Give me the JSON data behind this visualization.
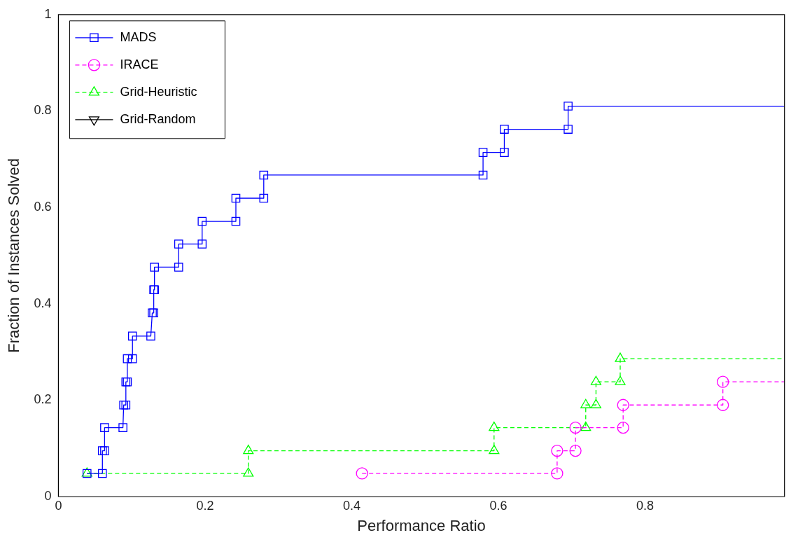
{
  "chart_data": {
    "type": "line",
    "xlabel": "Performance Ratio",
    "ylabel": "Fraction of Instances Solved",
    "xlim": [
      0,
      0.99
    ],
    "xticks": [
      0,
      0.2,
      0.4,
      0.6,
      0.8
    ],
    "ylim": [
      0,
      1
    ],
    "yticks": [
      0,
      0.2,
      0.4,
      0.6,
      0.8,
      1
    ],
    "grid": false,
    "legend": "top left",
    "series": [
      {
        "name": "MADS",
        "color": "#0000ff",
        "marker": "square",
        "line_style": "solid",
        "x": [
          0.039,
          0.06,
          0.06,
          0.063,
          0.063,
          0.088,
          0.089,
          0.092,
          0.092,
          0.094,
          0.094,
          0.101,
          0.101,
          0.126,
          0.128,
          0.13,
          0.13,
          0.131,
          0.131,
          0.164,
          0.164,
          0.196,
          0.196,
          0.242,
          0.242,
          0.28,
          0.28,
          0.579,
          0.579,
          0.608,
          0.608,
          0.695,
          0.695,
          0.99
        ],
        "values": [
          0.048,
          0.048,
          0.095,
          0.095,
          0.143,
          0.143,
          0.19,
          0.19,
          0.238,
          0.238,
          0.286,
          0.286,
          0.333,
          0.333,
          0.381,
          0.381,
          0.429,
          0.429,
          0.476,
          0.476,
          0.524,
          0.524,
          0.571,
          0.571,
          0.619,
          0.619,
          0.667,
          0.667,
          0.714,
          0.714,
          0.762,
          0.762,
          0.81,
          0.81
        ]
      },
      {
        "name": "IRACE",
        "color": "#ff00ff",
        "marker": "circle",
        "line_style": "dashed",
        "x": [
          0.414,
          0.68,
          0.68,
          0.705,
          0.705,
          0.77,
          0.77,
          0.906,
          0.906,
          0.99
        ],
        "values": [
          0.048,
          0.048,
          0.095,
          0.095,
          0.143,
          0.143,
          0.19,
          0.19,
          0.238,
          0.238
        ]
      },
      {
        "name": "Grid-Heuristic",
        "color": "#00ff00",
        "marker": "triangle",
        "line_style": "dashed",
        "x": [
          0.039,
          0.259,
          0.259,
          0.594,
          0.594,
          0.719,
          0.719,
          0.733,
          0.733,
          0.766,
          0.766,
          0.99
        ],
        "values": [
          0.048,
          0.048,
          0.095,
          0.095,
          0.143,
          0.143,
          0.19,
          0.19,
          0.238,
          0.238,
          0.286,
          0.286
        ]
      },
      {
        "name": "Grid-Random",
        "color": "#000000",
        "marker": "triangle-down",
        "line_style": "solid"
      }
    ]
  }
}
